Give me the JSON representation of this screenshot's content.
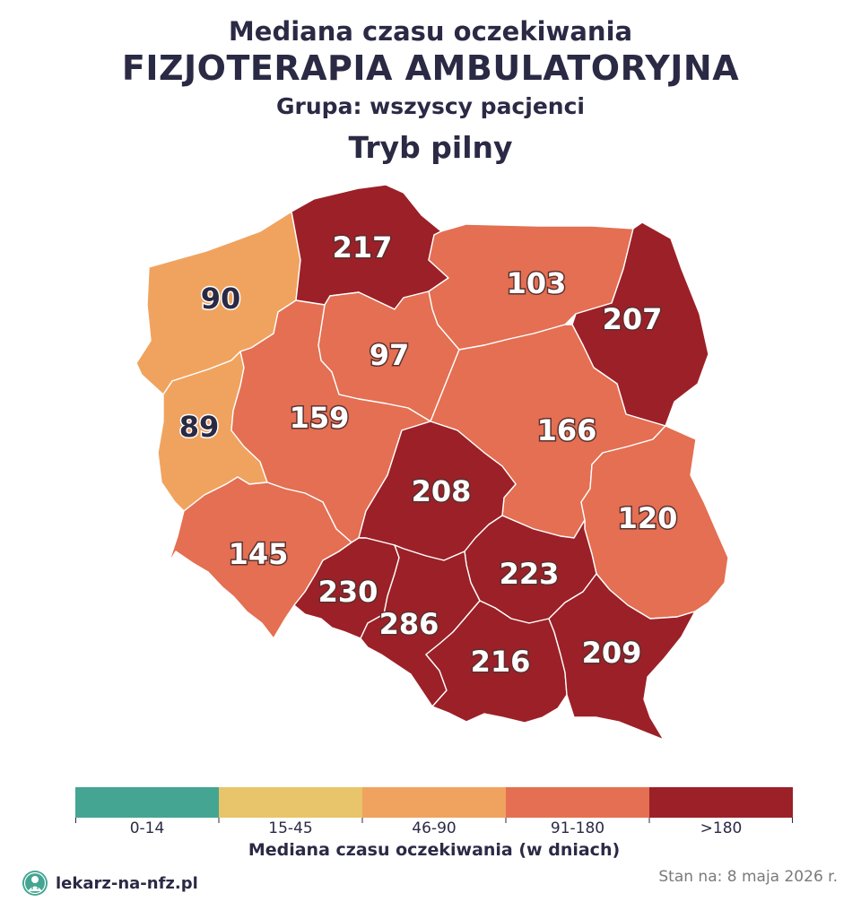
{
  "header": {
    "title": "Mediana czasu oczekiwania",
    "subtitle": "FIZJOTERAPIA AMBULATORYJNA",
    "group": "Grupa: wszyscy pacjenci",
    "mode": "Tryb pilny"
  },
  "colors": {
    "bin_0_14": "#44a592",
    "bin_15_45": "#e8c46a",
    "bin_46_90": "#f0a35f",
    "bin_91_180": "#e46f52",
    "bin_over_180": "#9c2027"
  },
  "regions": [
    {
      "id": "zachodniopomorskie",
      "value": "90",
      "bin": "46-90"
    },
    {
      "id": "pomorskie",
      "value": "217",
      "bin": ">180"
    },
    {
      "id": "warminsko-mazurskie",
      "value": "103",
      "bin": "91-180"
    },
    {
      "id": "podlaskie",
      "value": "207",
      "bin": ">180"
    },
    {
      "id": "kujawsko-pomorskie",
      "value": "97",
      "bin": "91-180"
    },
    {
      "id": "lubuskie",
      "value": "89",
      "bin": "46-90"
    },
    {
      "id": "wielkopolskie",
      "value": "159",
      "bin": "91-180"
    },
    {
      "id": "mazowieckie",
      "value": "166",
      "bin": "91-180"
    },
    {
      "id": "lodzkie",
      "value": "208",
      "bin": ">180"
    },
    {
      "id": "lubelskie",
      "value": "120",
      "bin": "91-180"
    },
    {
      "id": "dolnoslaskie",
      "value": "145",
      "bin": "91-180"
    },
    {
      "id": "opolskie",
      "value": "230",
      "bin": ">180"
    },
    {
      "id": "swietokrzyskie",
      "value": "223",
      "bin": ">180"
    },
    {
      "id": "slaskie",
      "value": "286",
      "bin": ">180"
    },
    {
      "id": "malopolskie",
      "value": "216",
      "bin": ">180"
    },
    {
      "id": "podkarpackie",
      "value": "209",
      "bin": ">180"
    }
  ],
  "legend": {
    "bins": [
      "0-14",
      "15-45",
      "46-90",
      "91-180",
      ">180"
    ],
    "title": "Mediana czasu oczekiwania (w dniach)"
  },
  "footer": {
    "brand": "lekarz-na-nfz.pl",
    "date": "Stan na: 8 maja 2026 r."
  }
}
